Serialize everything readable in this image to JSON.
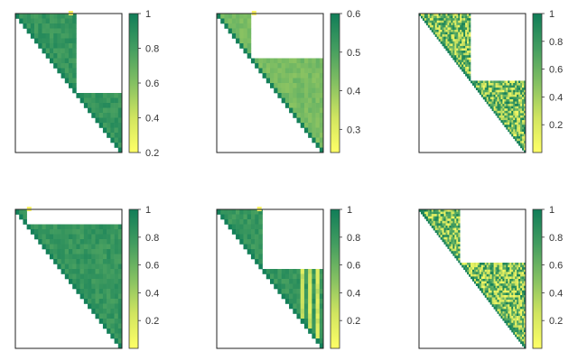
{
  "chart_data": [
    {
      "type": "heatmap",
      "title": "",
      "xlabel": "",
      "ylabel": "",
      "grid_size": 28,
      "structure": "two-blocks",
      "block_split": 0.58,
      "colorbar_range": [
        0.2,
        1.0
      ],
      "colorbar_ticks": [
        "0.2",
        "0.4",
        "0.6",
        "0.8",
        "1"
      ],
      "fill_range": [
        0.72,
        0.9
      ],
      "outlier_rows": [],
      "top_marker": 0.52
    },
    {
      "type": "heatmap",
      "title": "",
      "xlabel": "",
      "ylabel": "",
      "grid_size": 28,
      "structure": "two-blocks",
      "block_split": 0.31,
      "colorbar_range": [
        0.24,
        0.6
      ],
      "colorbar_ticks": [
        "0.3",
        "0.4",
        "0.5",
        "0.6"
      ],
      "fill_range": [
        0.48,
        0.59
      ],
      "outlier_rows": [],
      "top_marker": 0.35
    },
    {
      "type": "heatmap",
      "title": "",
      "xlabel": "",
      "ylabel": "",
      "grid_size": 60,
      "structure": "two-blocks",
      "block_split": 0.48,
      "colorbar_range": [
        0.0,
        1.0
      ],
      "colorbar_ticks": [
        "0.2",
        "0.4",
        "0.6",
        "0.8",
        "1"
      ],
      "fill_range": [
        0.05,
        1.0
      ],
      "outlier_rows": [],
      "top_marker": null,
      "noisy": true
    },
    {
      "type": "heatmap",
      "title": "",
      "xlabel": "",
      "ylabel": "",
      "grid_size": 28,
      "structure": "single-block",
      "block_split": 0.12,
      "colorbar_range": [
        0.0,
        1.0
      ],
      "colorbar_ticks": [
        "0.2",
        "0.4",
        "0.6",
        "0.8",
        "1"
      ],
      "fill_range": [
        0.72,
        0.9
      ],
      "outlier_rows": [],
      "top_marker": 0.13
    },
    {
      "type": "heatmap",
      "title": "",
      "xlabel": "",
      "ylabel": "",
      "grid_size": 28,
      "structure": "two-blocks",
      "block_split": 0.44,
      "colorbar_range": [
        0.0,
        1.0
      ],
      "colorbar_ticks": [
        "0.2",
        "0.4",
        "0.6",
        "0.8",
        "1"
      ],
      "fill_range": [
        0.72,
        0.9
      ],
      "outlier_rows": [
        0.8,
        0.87,
        0.93
      ],
      "top_marker": 0.4
    },
    {
      "type": "heatmap",
      "title": "",
      "xlabel": "",
      "ylabel": "",
      "grid_size": 60,
      "structure": "two-blocks",
      "block_split": 0.38,
      "colorbar_range": [
        0.0,
        1.0
      ],
      "colorbar_ticks": [
        "0.2",
        "0.4",
        "0.6",
        "0.8",
        "1"
      ],
      "fill_range": [
        0.05,
        1.0
      ],
      "outlier_rows": [],
      "top_marker": null,
      "noisy": true
    }
  ]
}
